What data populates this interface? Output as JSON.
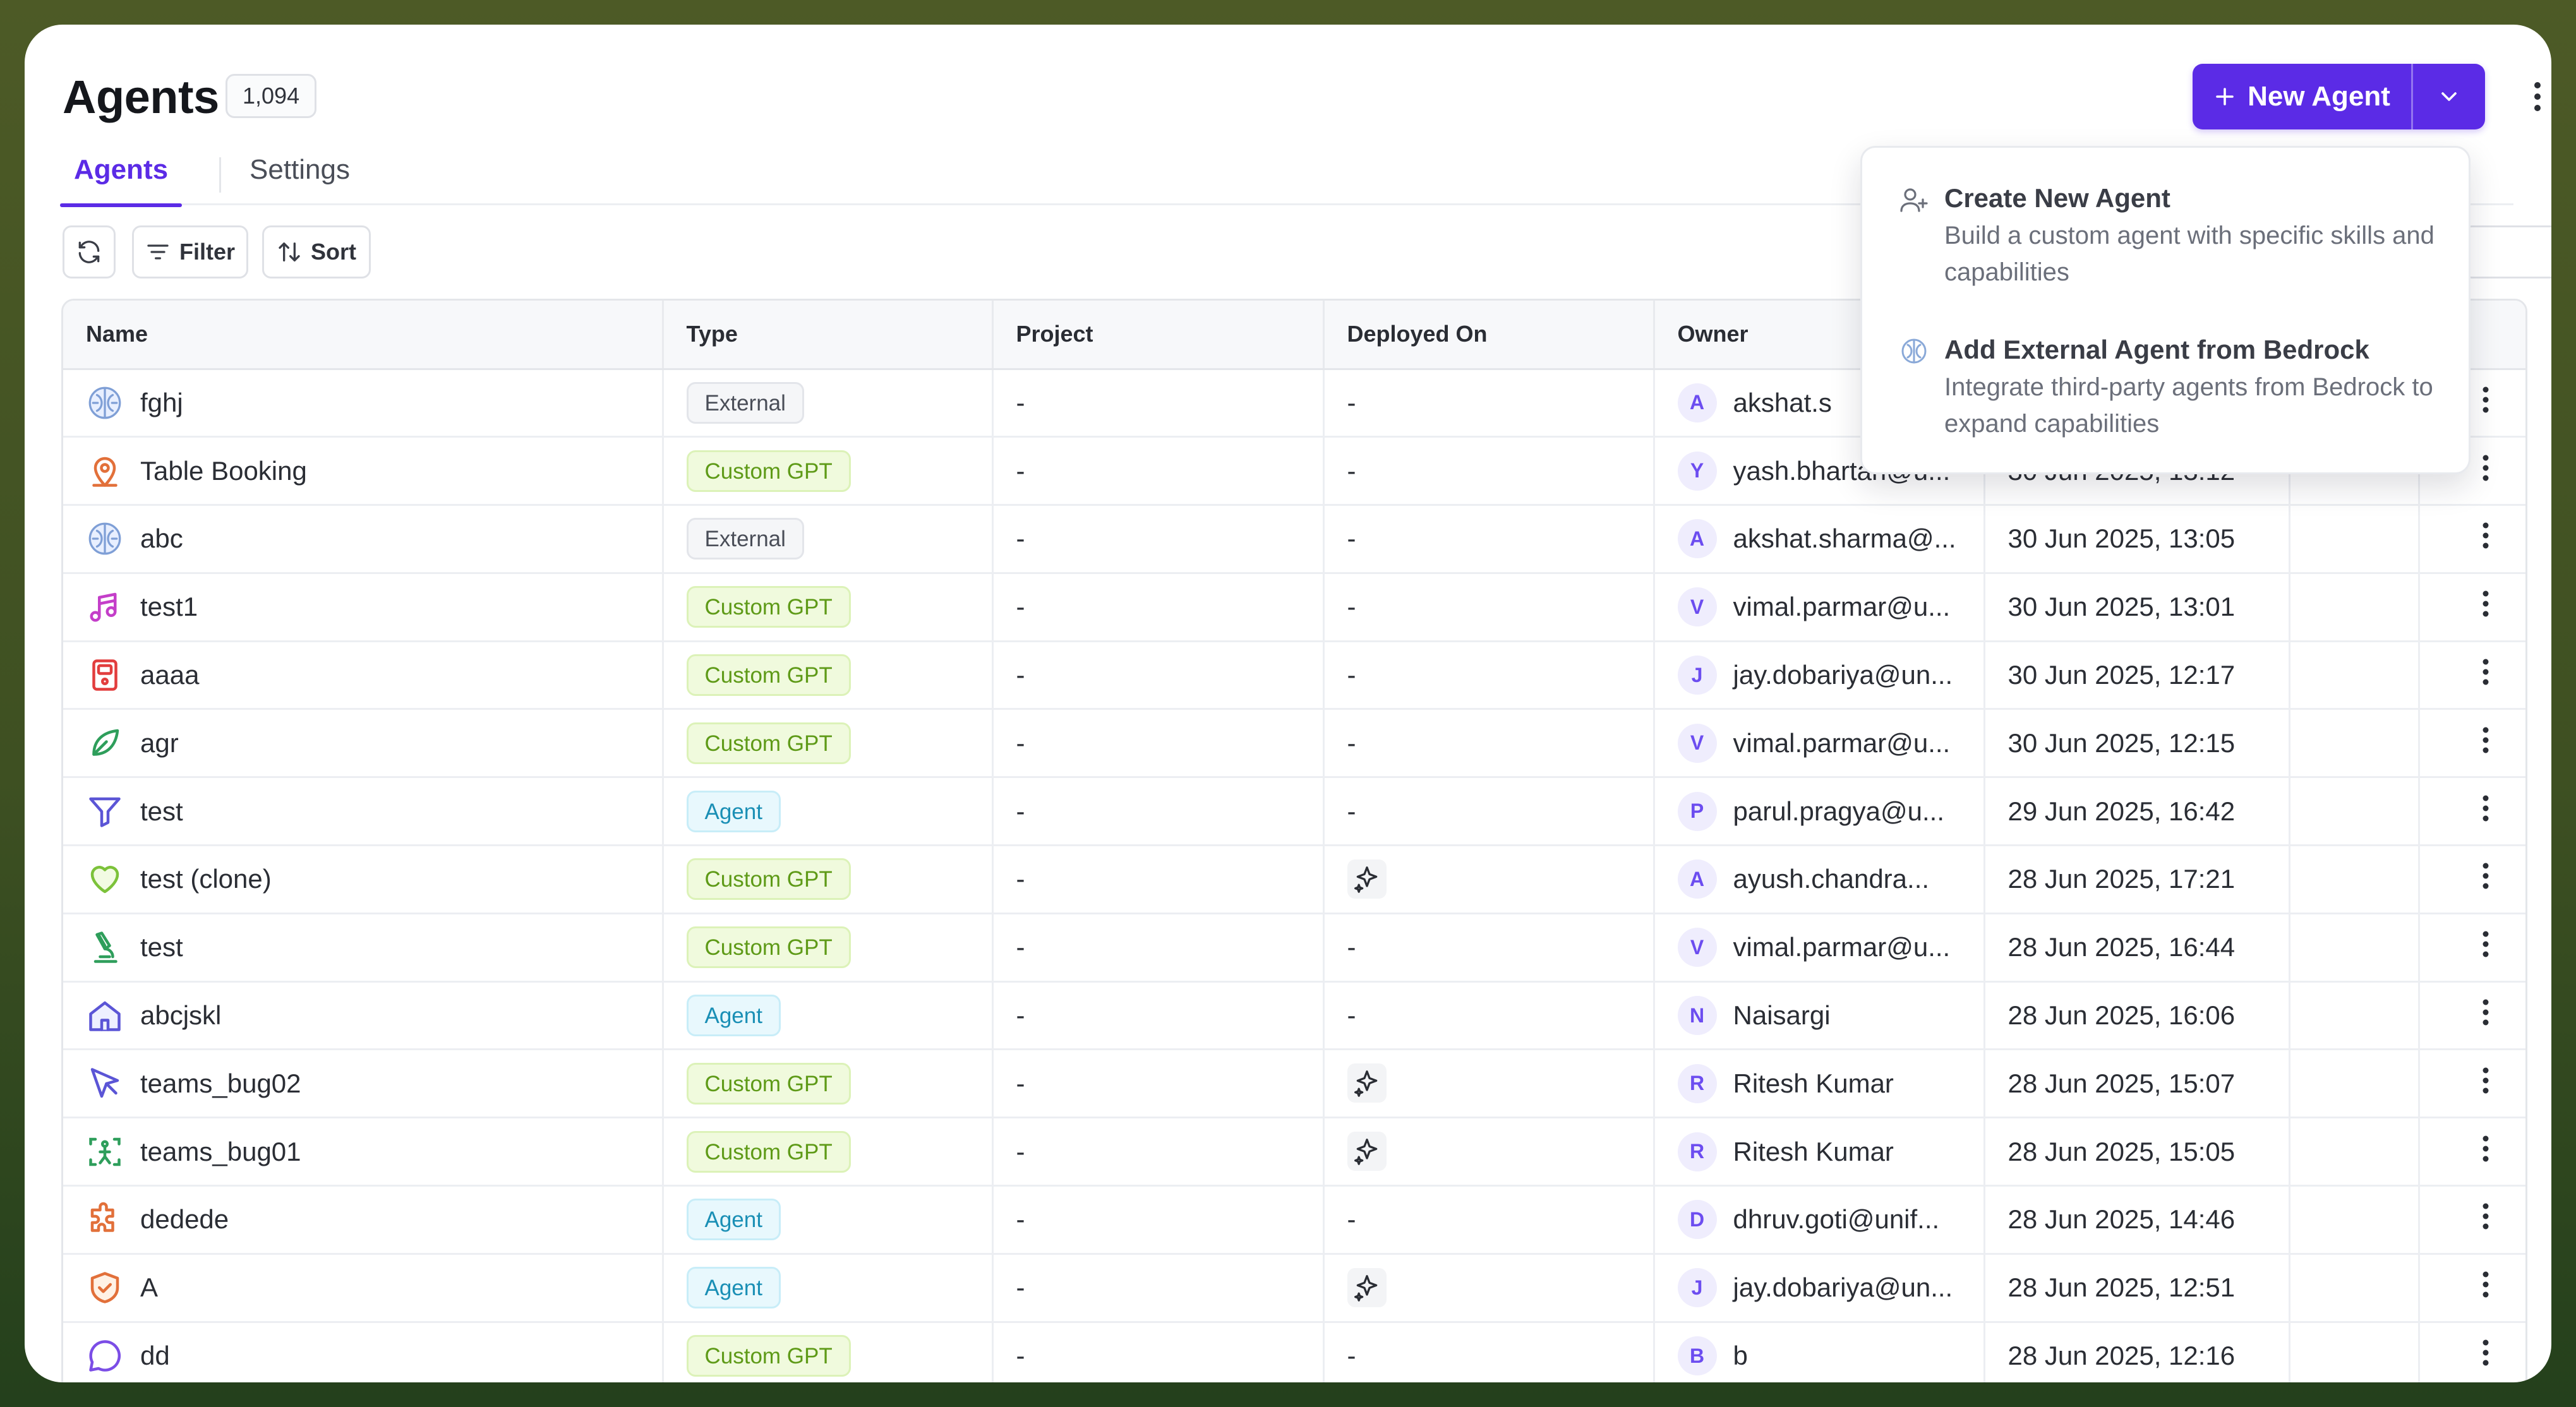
{
  "page": {
    "title": "Agents",
    "count": "1,094"
  },
  "header": {
    "new_agent_label": "New Agent"
  },
  "tabs": [
    {
      "label": "Agents"
    },
    {
      "label": "Settings"
    }
  ],
  "toolbar": {
    "filter_label": "Filter",
    "sort_label": "Sort"
  },
  "table": {
    "columns": [
      "Name",
      "Type",
      "Project",
      "Deployed On",
      "Owner"
    ],
    "rows": [
      {
        "name": "fghj",
        "icon": "brain-icon",
        "type": "External",
        "project": "-",
        "deployed": "-",
        "owner_initial": "A",
        "owner": "akshat.s",
        "date": ""
      },
      {
        "name": "Table Booking",
        "icon": "map-pin-icon",
        "type": "Custom GPT",
        "project": "-",
        "deployed": "-",
        "owner_initial": "Y",
        "owner": "yash.bhartari@u...",
        "date": "30 Jun 2025, 13:12"
      },
      {
        "name": "abc",
        "icon": "brain-icon",
        "type": "External",
        "project": "-",
        "deployed": "-",
        "owner_initial": "A",
        "owner": "akshat.sharma@...",
        "date": "30 Jun 2025, 13:05"
      },
      {
        "name": "test1",
        "icon": "music-icon",
        "type": "Custom GPT",
        "project": "-",
        "deployed": "-",
        "owner_initial": "V",
        "owner": "vimal.parmar@u...",
        "date": "30 Jun 2025, 13:01"
      },
      {
        "name": "aaaa",
        "icon": "device-icon",
        "type": "Custom GPT",
        "project": "-",
        "deployed": "-",
        "owner_initial": "J",
        "owner": "jay.dobariya@un...",
        "date": "30 Jun 2025, 12:17"
      },
      {
        "name": "agr",
        "icon": "leaf-icon",
        "type": "Custom GPT",
        "project": "-",
        "deployed": "-",
        "owner_initial": "V",
        "owner": "vimal.parmar@u...",
        "date": "30 Jun 2025, 12:15"
      },
      {
        "name": "test",
        "icon": "funnel-icon",
        "type": "Agent",
        "project": "-",
        "deployed": "-",
        "owner_initial": "P",
        "owner": "parul.pragya@u...",
        "date": "29 Jun 2025, 16:42"
      },
      {
        "name": "test (clone)",
        "icon": "heart-icon",
        "type": "Custom GPT",
        "project": "-",
        "deployed": "sparkle",
        "owner_initial": "A",
        "owner": "ayush.chandra...",
        "date": "28 Jun 2025, 17:21"
      },
      {
        "name": "test",
        "icon": "microscope-icon",
        "type": "Custom GPT",
        "project": "-",
        "deployed": "-",
        "owner_initial": "V",
        "owner": "vimal.parmar@u...",
        "date": "28 Jun 2025, 16:44"
      },
      {
        "name": "abcjskl",
        "icon": "home-icon",
        "type": "Agent",
        "project": "-",
        "deployed": "-",
        "owner_initial": "N",
        "owner": "Naisargi",
        "date": "28 Jun 2025, 16:06"
      },
      {
        "name": "teams_bug02",
        "icon": "cursor-icon",
        "type": "Custom GPT",
        "project": "-",
        "deployed": "sparkle",
        "owner_initial": "R",
        "owner": "Ritesh Kumar",
        "date": "28 Jun 2025, 15:07"
      },
      {
        "name": "teams_bug01",
        "icon": "scan-icon",
        "type": "Custom GPT",
        "project": "-",
        "deployed": "sparkle",
        "owner_initial": "R",
        "owner": "Ritesh Kumar",
        "date": "28 Jun 2025, 15:05"
      },
      {
        "name": "dedede",
        "icon": "puzzle-icon",
        "type": "Agent",
        "project": "-",
        "deployed": "-",
        "owner_initial": "D",
        "owner": "dhruv.goti@unif...",
        "date": "28 Jun 2025, 14:46"
      },
      {
        "name": "A",
        "icon": "shield-check-icon",
        "type": "Agent",
        "project": "-",
        "deployed": "sparkle",
        "owner_initial": "J",
        "owner": "jay.dobariya@un...",
        "date": "28 Jun 2025, 12:51"
      },
      {
        "name": "dd",
        "icon": "chat-bubble-icon",
        "type": "Custom GPT",
        "project": "-",
        "deployed": "-",
        "owner_initial": "B",
        "owner": "b",
        "date": "28 Jun 2025, 12:16"
      }
    ]
  },
  "dropdown": {
    "items": [
      {
        "title": "Create New Agent",
        "desc": "Build a custom agent with specific skills and capabilities",
        "icon": "user-plus-icon"
      },
      {
        "title": "Add External Agent from Bedrock",
        "desc": "Integrate third-party agents from Bedrock to expand capabilities",
        "icon": "brain-icon"
      }
    ]
  },
  "colors": {
    "accent": "#5b2be6",
    "custom_gpt": "#5e9a17",
    "agent": "#1a8fb5"
  }
}
